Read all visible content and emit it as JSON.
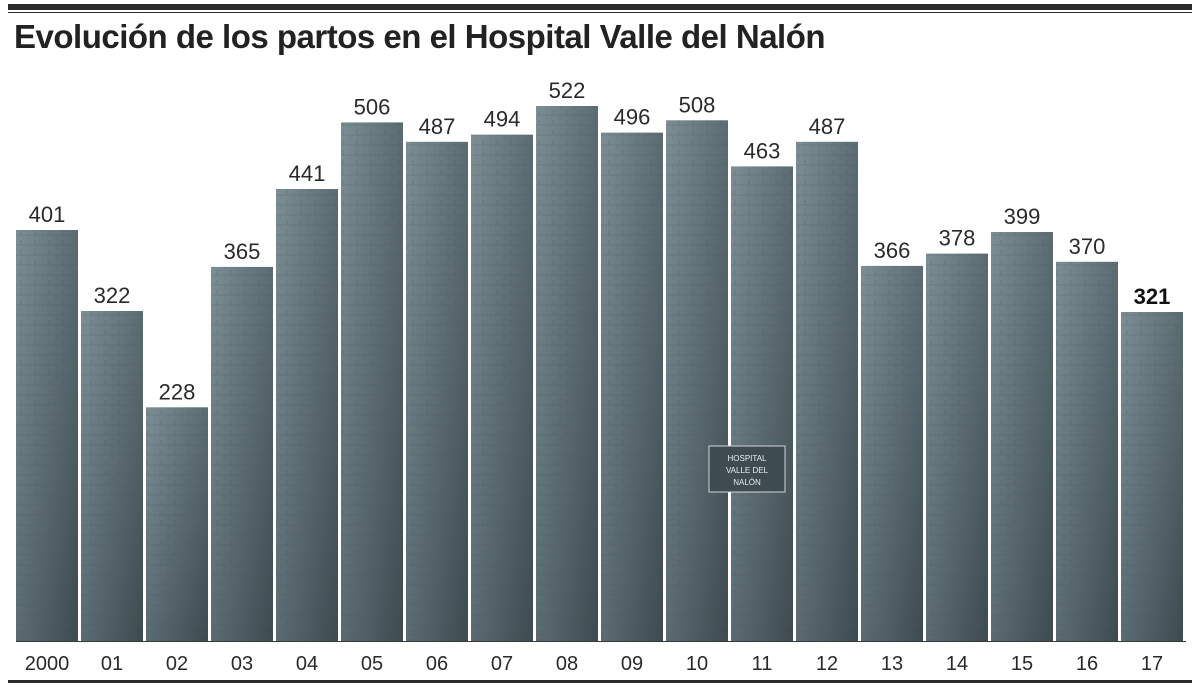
{
  "chart_data": {
    "type": "bar",
    "title": "Evolución de los partos en el Hospital Valle del Nalón",
    "xlabel": "",
    "ylabel": "",
    "ylim": [
      0,
      560
    ],
    "categories": [
      "2000",
      "01",
      "02",
      "03",
      "04",
      "05",
      "06",
      "07",
      "08",
      "09",
      "10",
      "11",
      "12",
      "13",
      "14",
      "15",
      "16",
      "17"
    ],
    "values": [
      401,
      322,
      228,
      365,
      441,
      506,
      487,
      494,
      522,
      496,
      508,
      463,
      487,
      366,
      378,
      399,
      370,
      321
    ],
    "value_labels": [
      "401",
      "322",
      "228",
      "365",
      "441",
      "506",
      "487",
      "494",
      "522",
      "496",
      "508",
      "463",
      "487",
      "366",
      "378",
      "399",
      "370",
      "321"
    ],
    "highlight_index": 17,
    "background_sign": [
      "HOSPITAL",
      "VALLE DEL",
      "NALÓN"
    ]
  },
  "colors": {
    "bar_fill": "#56646a",
    "bar_light": "#8a9aa0",
    "text": "#2a2a2a",
    "rule": "#2b2b2b"
  }
}
